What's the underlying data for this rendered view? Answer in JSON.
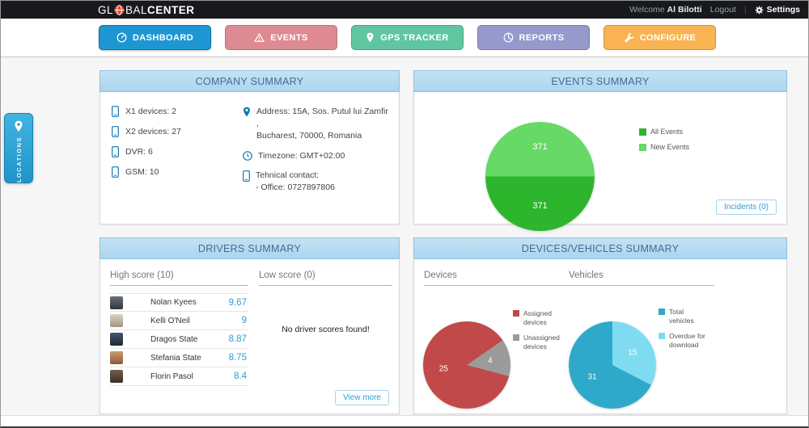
{
  "accent_color": "#2a9fd8",
  "topbar": {
    "logo_prefix": "GL",
    "logo_mid": "BAL",
    "logo_suffix": "CENTER",
    "welcome_label": "Welcome",
    "user_name": "Al Bilotti",
    "logout_label": "Logout",
    "settings_label": "Settings"
  },
  "nav": {
    "tabs": [
      {
        "label": "DASHBOARD",
        "color": "#1e96d2",
        "active": true
      },
      {
        "label": "EVENTS",
        "color": "#dd8a92",
        "active": false
      },
      {
        "label": "GPS TRACKER",
        "color": "#5fc6a1",
        "active": false
      },
      {
        "label": "REPORTS",
        "color": "#9599cb",
        "active": false
      },
      {
        "label": "CONFIGURE",
        "color": "#f9b353",
        "active": false
      }
    ]
  },
  "side_tab": {
    "label": "LOCATIONS"
  },
  "company_summary": {
    "title": "COMPANY SUMMARY",
    "devices": [
      {
        "label": "X1 devices: 2"
      },
      {
        "label": "X2 devices: 27"
      },
      {
        "label": "DVR: 6"
      },
      {
        "label": "GSM: 10"
      }
    ],
    "address_line1": "Address: 15A, Sos. Putul lui Zamfir ,",
    "address_line2": "Bucharest, 70000, Romania",
    "timezone": "Timezone: GMT+02:00",
    "contact_line1": "Tehnical contact:",
    "contact_line2": "- Office: 0727897806"
  },
  "events_summary": {
    "title": "EVENTS SUMMARY",
    "incidents_button": "Incidents (0)"
  },
  "drivers_summary": {
    "title": "DRIVERS SUMMARY",
    "high_score_title": "High score (10)",
    "low_score_title": "Low score (0)",
    "high_scores": [
      {
        "name": "Nolan Kyees",
        "score": "9.67"
      },
      {
        "name": "Kelli O'Neil",
        "score": "9"
      },
      {
        "name": "Dragos State",
        "score": "8.87"
      },
      {
        "name": "Stefania State",
        "score": "8.75"
      },
      {
        "name": "Florin Pasol",
        "score": "8.4"
      }
    ],
    "low_score_empty": "No driver scores found!",
    "view_more_button": "View more"
  },
  "devices_vehicles_summary": {
    "title": "DEVICES/VEHICLES SUMMARY",
    "devices_title": "Devices",
    "vehicles_title": "Vehicles"
  },
  "chart_data": [
    {
      "id": "events-pie",
      "type": "pie",
      "labels": [
        "All Events",
        "New Events"
      ],
      "values": [
        371,
        371
      ],
      "colors": [
        "#2eb52e",
        "#66d966"
      ],
      "rotation": 90,
      "legend_position": "right"
    },
    {
      "id": "devices-pie",
      "type": "pie",
      "labels": [
        "Assigned devices",
        "Unassigned devices"
      ],
      "values": [
        25,
        4
      ],
      "colors": [
        "#c14949",
        "#9b9b9b"
      ],
      "rotation": 105,
      "legend_position": "right"
    },
    {
      "id": "vehicles-pie",
      "type": "pie",
      "labels": [
        "Total vehicles",
        "Overdue for download"
      ],
      "values": [
        31,
        15
      ],
      "colors": [
        "#2fa9c9",
        "#7fdcf0"
      ],
      "rotation": 117.4,
      "legend_position": "right"
    }
  ]
}
